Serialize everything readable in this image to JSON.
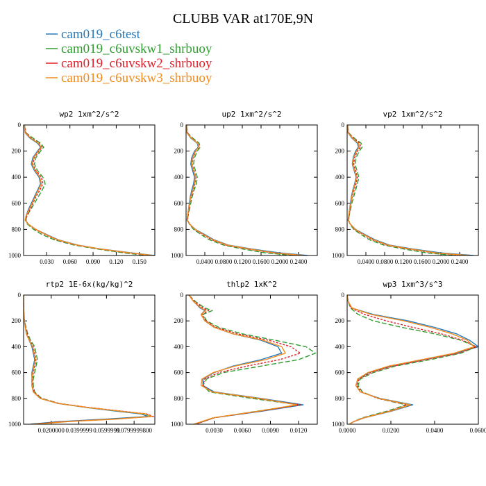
{
  "figure": {
    "title": "CLUBB VAR at170E,9N",
    "legend": [
      {
        "label": "cam019_c6test",
        "color": "#2a7ab8"
      },
      {
        "label": "cam019_c6uvskw1_shrbuoy",
        "color": "#2e9e2e"
      },
      {
        "label": "cam019_c6uvskw2_shrbuoy",
        "color": "#e0202a"
      },
      {
        "label": "cam019_c6uvskw3_shrbuoy",
        "color": "#f28c1e"
      }
    ]
  },
  "chart_data": [
    {
      "type": "line",
      "title": "wp2  1xm^2/s^2",
      "xlim": [
        0,
        0.17
      ],
      "ylim": [
        1000,
        0
      ],
      "xticks": [
        0.03,
        0.06,
        0.09,
        0.12,
        0.15
      ],
      "xtick_labels": [
        "0.030",
        "0.060",
        "0.090",
        "0.120",
        "0.150"
      ],
      "yticks": [
        0,
        200,
        400,
        600,
        800,
        1000
      ],
      "y": [
        0,
        60,
        100,
        140,
        170,
        200,
        250,
        300,
        350,
        400,
        450,
        500,
        550,
        600,
        650,
        700,
        730,
        760,
        800,
        840,
        880,
        920,
        950,
        980,
        1000
      ],
      "series": [
        {
          "name": "cam019_c6test",
          "color": "#2a7ab8",
          "dash": "",
          "values": [
            0.001,
            0.002,
            0.008,
            0.018,
            0.022,
            0.018,
            0.012,
            0.01,
            0.014,
            0.02,
            0.022,
            0.018,
            0.014,
            0.01,
            0.006,
            0.003,
            0.002,
            0.006,
            0.016,
            0.03,
            0.045,
            0.07,
            0.1,
            0.14,
            0.17
          ]
        },
        {
          "name": "cam019_c6uvskw1_shrbuoy",
          "color": "#2e9e2e",
          "dash": "7,3",
          "values": [
            0.001,
            0.003,
            0.012,
            0.022,
            0.026,
            0.022,
            0.016,
            0.014,
            0.018,
            0.025,
            0.028,
            0.024,
            0.019,
            0.014,
            0.009,
            0.004,
            0.003,
            0.005,
            0.013,
            0.024,
            0.04,
            0.065,
            0.095,
            0.13,
            0.16
          ]
        },
        {
          "name": "cam019_c6uvskw2_shrbuoy",
          "color": "#e0202a",
          "dash": "3,2",
          "values": [
            0.001,
            0.003,
            0.01,
            0.02,
            0.024,
            0.02,
            0.014,
            0.012,
            0.016,
            0.023,
            0.025,
            0.021,
            0.016,
            0.012,
            0.008,
            0.004,
            0.003,
            0.006,
            0.015,
            0.028,
            0.043,
            0.068,
            0.098,
            0.135,
            0.165
          ]
        },
        {
          "name": "cam019_c6uvskw3_shrbuoy",
          "color": "#f28c1e",
          "dash": "",
          "values": [
            0.001,
            0.002,
            0.009,
            0.019,
            0.023,
            0.019,
            0.013,
            0.011,
            0.015,
            0.021,
            0.023,
            0.019,
            0.015,
            0.011,
            0.007,
            0.003,
            0.002,
            0.006,
            0.016,
            0.029,
            0.044,
            0.069,
            0.099,
            0.138,
            0.168
          ]
        }
      ]
    },
    {
      "type": "line",
      "title": "up2  1xm^2/s^2",
      "xlim": [
        0,
        0.28
      ],
      "ylim": [
        1000,
        0
      ],
      "xticks": [
        0.04,
        0.08,
        0.12,
        0.16,
        0.2,
        0.24
      ],
      "xtick_labels": [
        "0.0400",
        "0.0800",
        "0.1200",
        "0.1600",
        "0.2000",
        "0.2400"
      ],
      "yticks": [
        0,
        200,
        400,
        600,
        800,
        1000
      ],
      "y": [
        0,
        60,
        100,
        140,
        170,
        200,
        250,
        300,
        350,
        400,
        450,
        500,
        550,
        600,
        650,
        700,
        730,
        760,
        800,
        840,
        880,
        920,
        950,
        980,
        1000
      ],
      "series": [
        {
          "name": "cam019_c6test",
          "color": "#2a7ab8",
          "dash": "",
          "values": [
            0.001,
            0.002,
            0.01,
            0.024,
            0.026,
            0.018,
            0.012,
            0.01,
            0.014,
            0.018,
            0.016,
            0.012,
            0.009,
            0.007,
            0.005,
            0.003,
            0.002,
            0.008,
            0.02,
            0.04,
            0.06,
            0.09,
            0.14,
            0.2,
            0.26
          ]
        },
        {
          "name": "cam019_c6uvskw1_shrbuoy",
          "color": "#2e9e2e",
          "dash": "7,3",
          "values": [
            0.001,
            0.003,
            0.014,
            0.028,
            0.03,
            0.024,
            0.018,
            0.016,
            0.02,
            0.024,
            0.022,
            0.017,
            0.013,
            0.01,
            0.007,
            0.004,
            0.003,
            0.007,
            0.016,
            0.032,
            0.05,
            0.08,
            0.12,
            0.17,
            0.23
          ]
        },
        {
          "name": "cam019_c6uvskw2_shrbuoy",
          "color": "#e0202a",
          "dash": "3,2",
          "values": [
            0.001,
            0.003,
            0.012,
            0.026,
            0.028,
            0.021,
            0.015,
            0.013,
            0.017,
            0.021,
            0.019,
            0.015,
            0.011,
            0.008,
            0.006,
            0.004,
            0.003,
            0.008,
            0.018,
            0.036,
            0.055,
            0.085,
            0.13,
            0.185,
            0.245
          ]
        },
        {
          "name": "cam019_c6uvskw3_shrbuoy",
          "color": "#f28c1e",
          "dash": "",
          "values": [
            0.001,
            0.002,
            0.011,
            0.025,
            0.027,
            0.02,
            0.014,
            0.012,
            0.016,
            0.02,
            0.018,
            0.014,
            0.01,
            0.008,
            0.005,
            0.003,
            0.002,
            0.008,
            0.019,
            0.038,
            0.058,
            0.088,
            0.135,
            0.19,
            0.25
          ]
        }
      ]
    },
    {
      "type": "line",
      "title": "vp2  1xm^2/s^2",
      "xlim": [
        0,
        0.28
      ],
      "ylim": [
        1000,
        0
      ],
      "xticks": [
        0.04,
        0.08,
        0.12,
        0.16,
        0.2,
        0.24
      ],
      "xtick_labels": [
        "0.0400",
        "0.0800",
        "0.1200",
        "0.1600",
        "0.2000",
        "0.2400"
      ],
      "yticks": [
        0,
        200,
        400,
        600,
        800,
        1000
      ],
      "y": [
        0,
        60,
        100,
        140,
        170,
        200,
        250,
        300,
        350,
        400,
        450,
        500,
        550,
        600,
        650,
        700,
        730,
        760,
        800,
        840,
        880,
        920,
        950,
        980,
        1000
      ],
      "series": [
        {
          "name": "cam019_c6test",
          "color": "#2a7ab8",
          "dash": "",
          "values": [
            0.001,
            0.002,
            0.01,
            0.022,
            0.024,
            0.018,
            0.013,
            0.011,
            0.015,
            0.019,
            0.016,
            0.012,
            0.009,
            0.007,
            0.005,
            0.003,
            0.002,
            0.007,
            0.018,
            0.038,
            0.06,
            0.09,
            0.14,
            0.2,
            0.27
          ]
        },
        {
          "name": "cam019_c6uvskw1_shrbuoy",
          "color": "#2e9e2e",
          "dash": "7,3",
          "values": [
            0.001,
            0.003,
            0.015,
            0.03,
            0.032,
            0.026,
            0.019,
            0.017,
            0.021,
            0.025,
            0.022,
            0.018,
            0.014,
            0.01,
            0.007,
            0.004,
            0.003,
            0.006,
            0.014,
            0.03,
            0.048,
            0.078,
            0.12,
            0.17,
            0.23
          ]
        },
        {
          "name": "cam019_c6uvskw2_shrbuoy",
          "color": "#e0202a",
          "dash": "3,2",
          "values": [
            0.001,
            0.003,
            0.013,
            0.027,
            0.029,
            0.022,
            0.016,
            0.014,
            0.018,
            0.022,
            0.019,
            0.015,
            0.011,
            0.008,
            0.006,
            0.004,
            0.003,
            0.007,
            0.016,
            0.034,
            0.054,
            0.084,
            0.13,
            0.185,
            0.25
          ]
        },
        {
          "name": "cam019_c6uvskw3_shrbuoy",
          "color": "#f28c1e",
          "dash": "",
          "values": [
            0.001,
            0.002,
            0.011,
            0.024,
            0.026,
            0.02,
            0.014,
            0.012,
            0.016,
            0.02,
            0.017,
            0.013,
            0.01,
            0.008,
            0.005,
            0.003,
            0.002,
            0.007,
            0.017,
            0.036,
            0.057,
            0.087,
            0.135,
            0.19,
            0.26
          ]
        }
      ]
    },
    {
      "type": "line",
      "title": "rtp2  1E-6x(kg/kg)^2",
      "xlim": [
        0,
        0.095
      ],
      "ylim": [
        1000,
        0
      ],
      "xticks": [
        0.02,
        0.04,
        0.06,
        0.08
      ],
      "xtick_labels": [
        "0.0200000",
        "0.0399999",
        "0.0599999",
        "0.0799999800"
      ],
      "yticks": [
        0,
        200,
        400,
        600,
        800,
        1000
      ],
      "y": [
        0,
        100,
        200,
        300,
        350,
        400,
        450,
        500,
        550,
        600,
        650,
        700,
        750,
        800,
        840,
        870,
        900,
        920,
        940,
        960,
        980,
        1000
      ],
      "series": [
        {
          "name": "cam019_c6test",
          "color": "#2a7ab8",
          "dash": "",
          "values": [
            0,
            0,
            0.0005,
            0.002,
            0.004,
            0.006,
            0.007,
            0.008,
            0.007,
            0.006,
            0.006,
            0.006,
            0.007,
            0.012,
            0.025,
            0.045,
            0.068,
            0.085,
            0.09,
            0.06,
            0.025,
            0.005
          ]
        },
        {
          "name": "cam019_c6uvskw1_shrbuoy",
          "color": "#2e9e2e",
          "dash": "7,3",
          "values": [
            0,
            0,
            0.0006,
            0.003,
            0.005,
            0.008,
            0.009,
            0.01,
            0.009,
            0.008,
            0.007,
            0.007,
            0.008,
            0.013,
            0.026,
            0.046,
            0.07,
            0.087,
            0.093,
            0.065,
            0.03,
            0.006
          ]
        },
        {
          "name": "cam019_c6uvskw2_shrbuoy",
          "color": "#e0202a",
          "dash": "3,2",
          "values": [
            0,
            0,
            0.0005,
            0.0025,
            0.0045,
            0.007,
            0.008,
            0.009,
            0.008,
            0.007,
            0.0065,
            0.0065,
            0.0075,
            0.0125,
            0.026,
            0.047,
            0.072,
            0.089,
            0.094,
            0.066,
            0.028,
            0.006
          ]
        },
        {
          "name": "cam019_c6uvskw3_shrbuoy",
          "color": "#f28c1e",
          "dash": "",
          "values": [
            0,
            0,
            0.0005,
            0.002,
            0.004,
            0.0065,
            0.0075,
            0.0085,
            0.0075,
            0.0065,
            0.006,
            0.006,
            0.007,
            0.012,
            0.025,
            0.046,
            0.071,
            0.088,
            0.093,
            0.068,
            0.032,
            0.008
          ]
        }
      ]
    },
    {
      "type": "line",
      "title": "thlp2  1xK^2",
      "xlim": [
        0,
        0.014
      ],
      "ylim": [
        1000,
        0
      ],
      "xticks": [
        0.003,
        0.006,
        0.009,
        0.012
      ],
      "xtick_labels": [
        "0.0030",
        "0.0060",
        "0.0090",
        "0.0120"
      ],
      "yticks": [
        0,
        200,
        400,
        600,
        800,
        1000
      ],
      "y": [
        0,
        50,
        100,
        120,
        150,
        200,
        250,
        300,
        350,
        400,
        450,
        500,
        550,
        600,
        650,
        700,
        750,
        800,
        850,
        900,
        950,
        1000
      ],
      "series": [
        {
          "name": "cam019_c6test",
          "color": "#2a7ab8",
          "dash": "",
          "values": [
            0.0003,
            0.0008,
            0.0015,
            0.002,
            0.0016,
            0.002,
            0.003,
            0.005,
            0.008,
            0.0098,
            0.0102,
            0.008,
            0.005,
            0.003,
            0.0018,
            0.0018,
            0.003,
            0.008,
            0.0125,
            0.008,
            0.003,
            0.001
          ]
        },
        {
          "name": "cam019_c6uvskw1_shrbuoy",
          "color": "#2e9e2e",
          "dash": "7,3",
          "values": [
            0.0003,
            0.001,
            0.002,
            0.0028,
            0.0018,
            0.0022,
            0.0035,
            0.006,
            0.0095,
            0.0128,
            0.0138,
            0.012,
            0.008,
            0.004,
            0.0022,
            0.0018,
            0.0025,
            0.007,
            0.012,
            0.0075,
            0.003,
            0.001
          ]
        },
        {
          "name": "cam019_c6uvskw2_shrbuoy",
          "color": "#e0202a",
          "dash": "3,2",
          "values": [
            0.0003,
            0.0009,
            0.0018,
            0.0024,
            0.0017,
            0.0021,
            0.0032,
            0.0055,
            0.0088,
            0.0112,
            0.0122,
            0.01,
            0.0065,
            0.0035,
            0.002,
            0.0018,
            0.0028,
            0.0075,
            0.0122,
            0.0078,
            0.003,
            0.001
          ]
        },
        {
          "name": "cam019_c6uvskw3_shrbuoy",
          "color": "#f28c1e",
          "dash": "",
          "values": [
            0.0003,
            0.0008,
            0.0016,
            0.0021,
            0.0016,
            0.002,
            0.003,
            0.005,
            0.0082,
            0.0102,
            0.0106,
            0.0085,
            0.0052,
            0.0029,
            0.0017,
            0.0016,
            0.0028,
            0.0078,
            0.0118,
            0.0076,
            0.0029,
            0.0008
          ]
        }
      ]
    },
    {
      "type": "line",
      "title": "wp3  1xm^3/s^3",
      "xlim": [
        0,
        0.06
      ],
      "ylim": [
        1000,
        0
      ],
      "xticks": [
        0,
        0.02,
        0.04,
        0.06
      ],
      "xtick_labels": [
        "0.0000",
        "0.0200",
        "0.0400",
        "0.0600"
      ],
      "yticks": [
        0,
        200,
        400,
        600,
        800,
        1000
      ],
      "y": [
        0,
        50,
        100,
        150,
        200,
        250,
        300,
        350,
        400,
        450,
        500,
        550,
        600,
        650,
        700,
        750,
        800,
        850,
        900,
        950,
        980,
        1000
      ],
      "series": [
        {
          "name": "cam019_c6test",
          "color": "#2a7ab8",
          "dash": "",
          "values": [
            0,
            0.0005,
            0.002,
            0.012,
            0.028,
            0.04,
            0.05,
            0.056,
            0.06,
            0.05,
            0.035,
            0.02,
            0.01,
            0.005,
            0.004,
            0.006,
            0.015,
            0.03,
            0.02,
            0.008,
            0.003,
            0.001
          ]
        },
        {
          "name": "cam019_c6uvskw1_shrbuoy",
          "color": "#2e9e2e",
          "dash": "7,3",
          "values": [
            0,
            0.0005,
            0.0015,
            0.005,
            0.012,
            0.025,
            0.04,
            0.052,
            0.059,
            0.052,
            0.038,
            0.022,
            0.012,
            0.006,
            0.005,
            0.007,
            0.014,
            0.027,
            0.018,
            0.007,
            0.003,
            0.001
          ]
        },
        {
          "name": "cam019_c6uvskw2_shrbuoy",
          "color": "#e0202a",
          "dash": "3,2",
          "values": [
            0,
            0.0005,
            0.0018,
            0.008,
            0.018,
            0.03,
            0.043,
            0.053,
            0.059,
            0.051,
            0.036,
            0.021,
            0.011,
            0.0055,
            0.0045,
            0.0065,
            0.014,
            0.028,
            0.019,
            0.0075,
            0.003,
            0.001
          ]
        },
        {
          "name": "cam019_c6uvskw3_shrbuoy",
          "color": "#f28c1e",
          "dash": "",
          "values": [
            0,
            0.0005,
            0.0022,
            0.011,
            0.026,
            0.038,
            0.048,
            0.055,
            0.058,
            0.049,
            0.034,
            0.019,
            0.0095,
            0.0048,
            0.004,
            0.006,
            0.0145,
            0.029,
            0.0195,
            0.0078,
            0.003,
            0.001
          ]
        }
      ]
    }
  ]
}
